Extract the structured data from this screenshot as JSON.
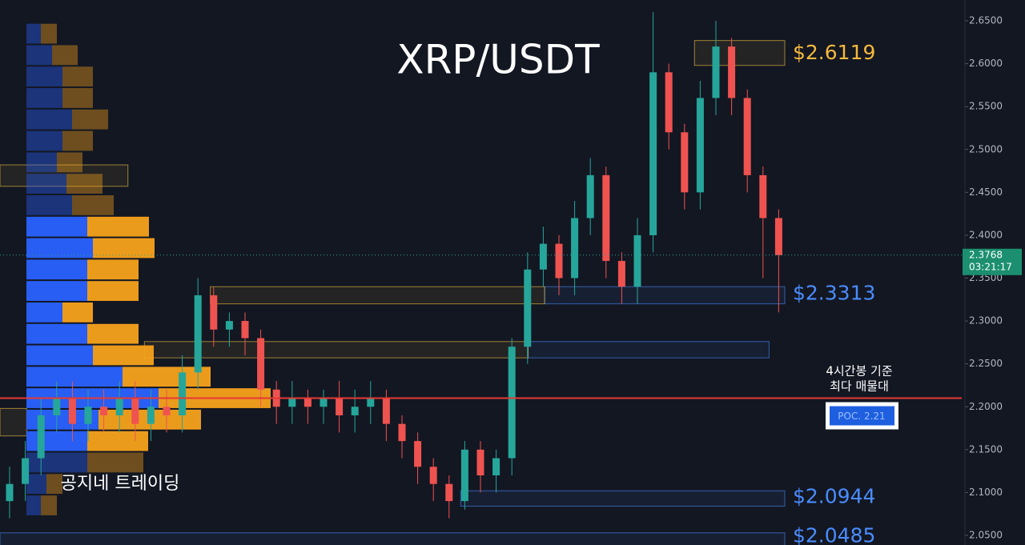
{
  "chart_data": {
    "type": "candlestick",
    "title": "XRP/USDT",
    "watermark": "공지네 트레이딩",
    "ylim": [
      2.05,
      2.65
    ],
    "yticks": [
      {
        "value": 2.65,
        "label": "2.6500"
      },
      {
        "value": 2.6,
        "label": "2.6000"
      },
      {
        "value": 2.55,
        "label": "2.5500"
      },
      {
        "value": 2.5,
        "label": "2.5000"
      },
      {
        "value": 2.45,
        "label": "2.4500"
      },
      {
        "value": 2.4,
        "label": "2.4000"
      },
      {
        "value": 2.35,
        "label": "2.3500"
      },
      {
        "value": 2.3,
        "label": "2.3000"
      },
      {
        "value": 2.25,
        "label": "2.2500"
      },
      {
        "value": 2.2,
        "label": "2.2000"
      },
      {
        "value": 2.15,
        "label": "2.1500"
      },
      {
        "value": 2.1,
        "label": "2.1000"
      },
      {
        "value": 2.05,
        "label": "2.0500"
      }
    ],
    "up_color": "#26a69a",
    "down_color": "#ef5350",
    "open": [
      2.09,
      2.11,
      2.14,
      2.19,
      2.21,
      2.18,
      2.2,
      2.19,
      2.21,
      2.18,
      2.2,
      2.19,
      2.24,
      2.33,
      2.29,
      2.3,
      2.28,
      2.22,
      2.2,
      2.21,
      2.2,
      2.21,
      2.19,
      2.2,
      2.21,
      2.18,
      2.16,
      2.13,
      2.11,
      2.09,
      2.15,
      2.12,
      2.14,
      2.27,
      2.36,
      2.39,
      2.35,
      2.42,
      2.47,
      2.37,
      2.34,
      2.4,
      2.59,
      2.52,
      2.45,
      2.56,
      2.62,
      2.56,
      2.47,
      2.42
    ],
    "high": [
      2.13,
      2.16,
      2.21,
      2.23,
      2.23,
      2.22,
      2.22,
      2.23,
      2.23,
      2.22,
      2.22,
      2.26,
      2.35,
      2.34,
      2.31,
      2.31,
      2.29,
      2.23,
      2.23,
      2.22,
      2.22,
      2.23,
      2.22,
      2.23,
      2.22,
      2.19,
      2.17,
      2.14,
      2.12,
      2.16,
      2.16,
      2.15,
      2.28,
      2.38,
      2.41,
      2.4,
      2.44,
      2.49,
      2.48,
      2.38,
      2.42,
      2.66,
      2.6,
      2.53,
      2.58,
      2.65,
      2.63,
      2.57,
      2.48,
      2.43
    ],
    "low": [
      2.07,
      2.09,
      2.12,
      2.17,
      2.16,
      2.16,
      2.17,
      2.17,
      2.16,
      2.16,
      2.17,
      2.17,
      2.22,
      2.27,
      2.27,
      2.26,
      2.2,
      2.18,
      2.18,
      2.18,
      2.18,
      2.17,
      2.17,
      2.18,
      2.16,
      2.14,
      2.11,
      2.09,
      2.07,
      2.08,
      2.1,
      2.1,
      2.12,
      2.25,
      2.34,
      2.33,
      2.33,
      2.4,
      2.35,
      2.32,
      2.32,
      2.38,
      2.5,
      2.43,
      2.43,
      2.54,
      2.54,
      2.45,
      2.35,
      2.31
    ],
    "close": [
      2.11,
      2.14,
      2.19,
      2.21,
      2.18,
      2.2,
      2.19,
      2.21,
      2.18,
      2.2,
      2.19,
      2.24,
      2.33,
      2.29,
      2.3,
      2.28,
      2.22,
      2.2,
      2.21,
      2.2,
      2.21,
      2.19,
      2.2,
      2.21,
      2.18,
      2.16,
      2.13,
      2.11,
      2.09,
      2.15,
      2.12,
      2.14,
      2.27,
      2.36,
      2.39,
      2.35,
      2.42,
      2.47,
      2.37,
      2.34,
      2.4,
      2.59,
      2.52,
      2.45,
      2.56,
      2.62,
      2.56,
      2.47,
      2.42,
      2.3768
    ],
    "current_price": 2.3768,
    "countdown": "03:21:17",
    "volume_profile": {
      "xlim": [
        0,
        330
      ],
      "buy_color": "#2962ff",
      "sell_color": "#f7a21b",
      "value_area": [
        2.16,
        2.41
      ],
      "levels": [
        2.635,
        2.61,
        2.585,
        2.56,
        2.535,
        2.51,
        2.485,
        2.46,
        2.435,
        2.41,
        2.385,
        2.36,
        2.335,
        2.31,
        2.285,
        2.26,
        2.235,
        2.21,
        2.185,
        2.16,
        2.135,
        2.11,
        2.085
      ],
      "buy": [
        18,
        32,
        45,
        45,
        57,
        45,
        38,
        50,
        57,
        76,
        83,
        76,
        76,
        45,
        76,
        83,
        120,
        165,
        90,
        76,
        76,
        25,
        18
      ],
      "sell": [
        20,
        32,
        38,
        38,
        45,
        38,
        32,
        45,
        52,
        77,
        77,
        64,
        64,
        38,
        64,
        76,
        110,
        140,
        128,
        76,
        70,
        20,
        20
      ]
    },
    "zones": [
      {
        "low": 2.598,
        "high": 2.627,
        "color": "#f5c542",
        "start": 0.885,
        "end": 1
      },
      {
        "low": 2.457,
        "high": 2.482,
        "color": "#f5c542",
        "start": 0,
        "end": 0.163
      },
      {
        "low": 2.32,
        "high": 2.34,
        "color": "#f5c542",
        "start": 0.268,
        "end": 0.694
      },
      {
        "low": 2.32,
        "high": 2.34,
        "color": "#4a8cff",
        "start": 0.694,
        "end": 1
      },
      {
        "low": 2.257,
        "high": 2.276,
        "color": "#f5c542",
        "start": 0.184,
        "end": 0.673
      },
      {
        "low": 2.257,
        "high": 2.276,
        "color": "#4a8cff",
        "start": 0.673,
        "end": 0.98
      },
      {
        "low": 2.166,
        "high": 2.198,
        "color": "#f5c542",
        "start": 0,
        "end": 0.034
      },
      {
        "low": 2.084,
        "high": 2.102,
        "color": "#4a8cff",
        "start": 0.587,
        "end": 1
      },
      {
        "low": 2.03,
        "high": 2.053,
        "color": "#4a8cff",
        "start": 0,
        "end": 1
      }
    ],
    "price_labels": [
      {
        "text": "$2.6119",
        "value": 2.6119,
        "color": "#f5b93c"
      },
      {
        "text": "$2.3313",
        "value": 2.3313,
        "color": "#4a8cff"
      },
      {
        "text": "$2.0944",
        "value": 2.0944,
        "color": "#4a8cff"
      },
      {
        "text": "$2.0485",
        "value": 2.0485,
        "color": "#4a8cff"
      }
    ],
    "poc": {
      "value": 2.21,
      "label": "POC. 2.21",
      "note": [
        "4시간봉 기준",
        "최다 매물대"
      ],
      "color": "#e53935"
    }
  }
}
